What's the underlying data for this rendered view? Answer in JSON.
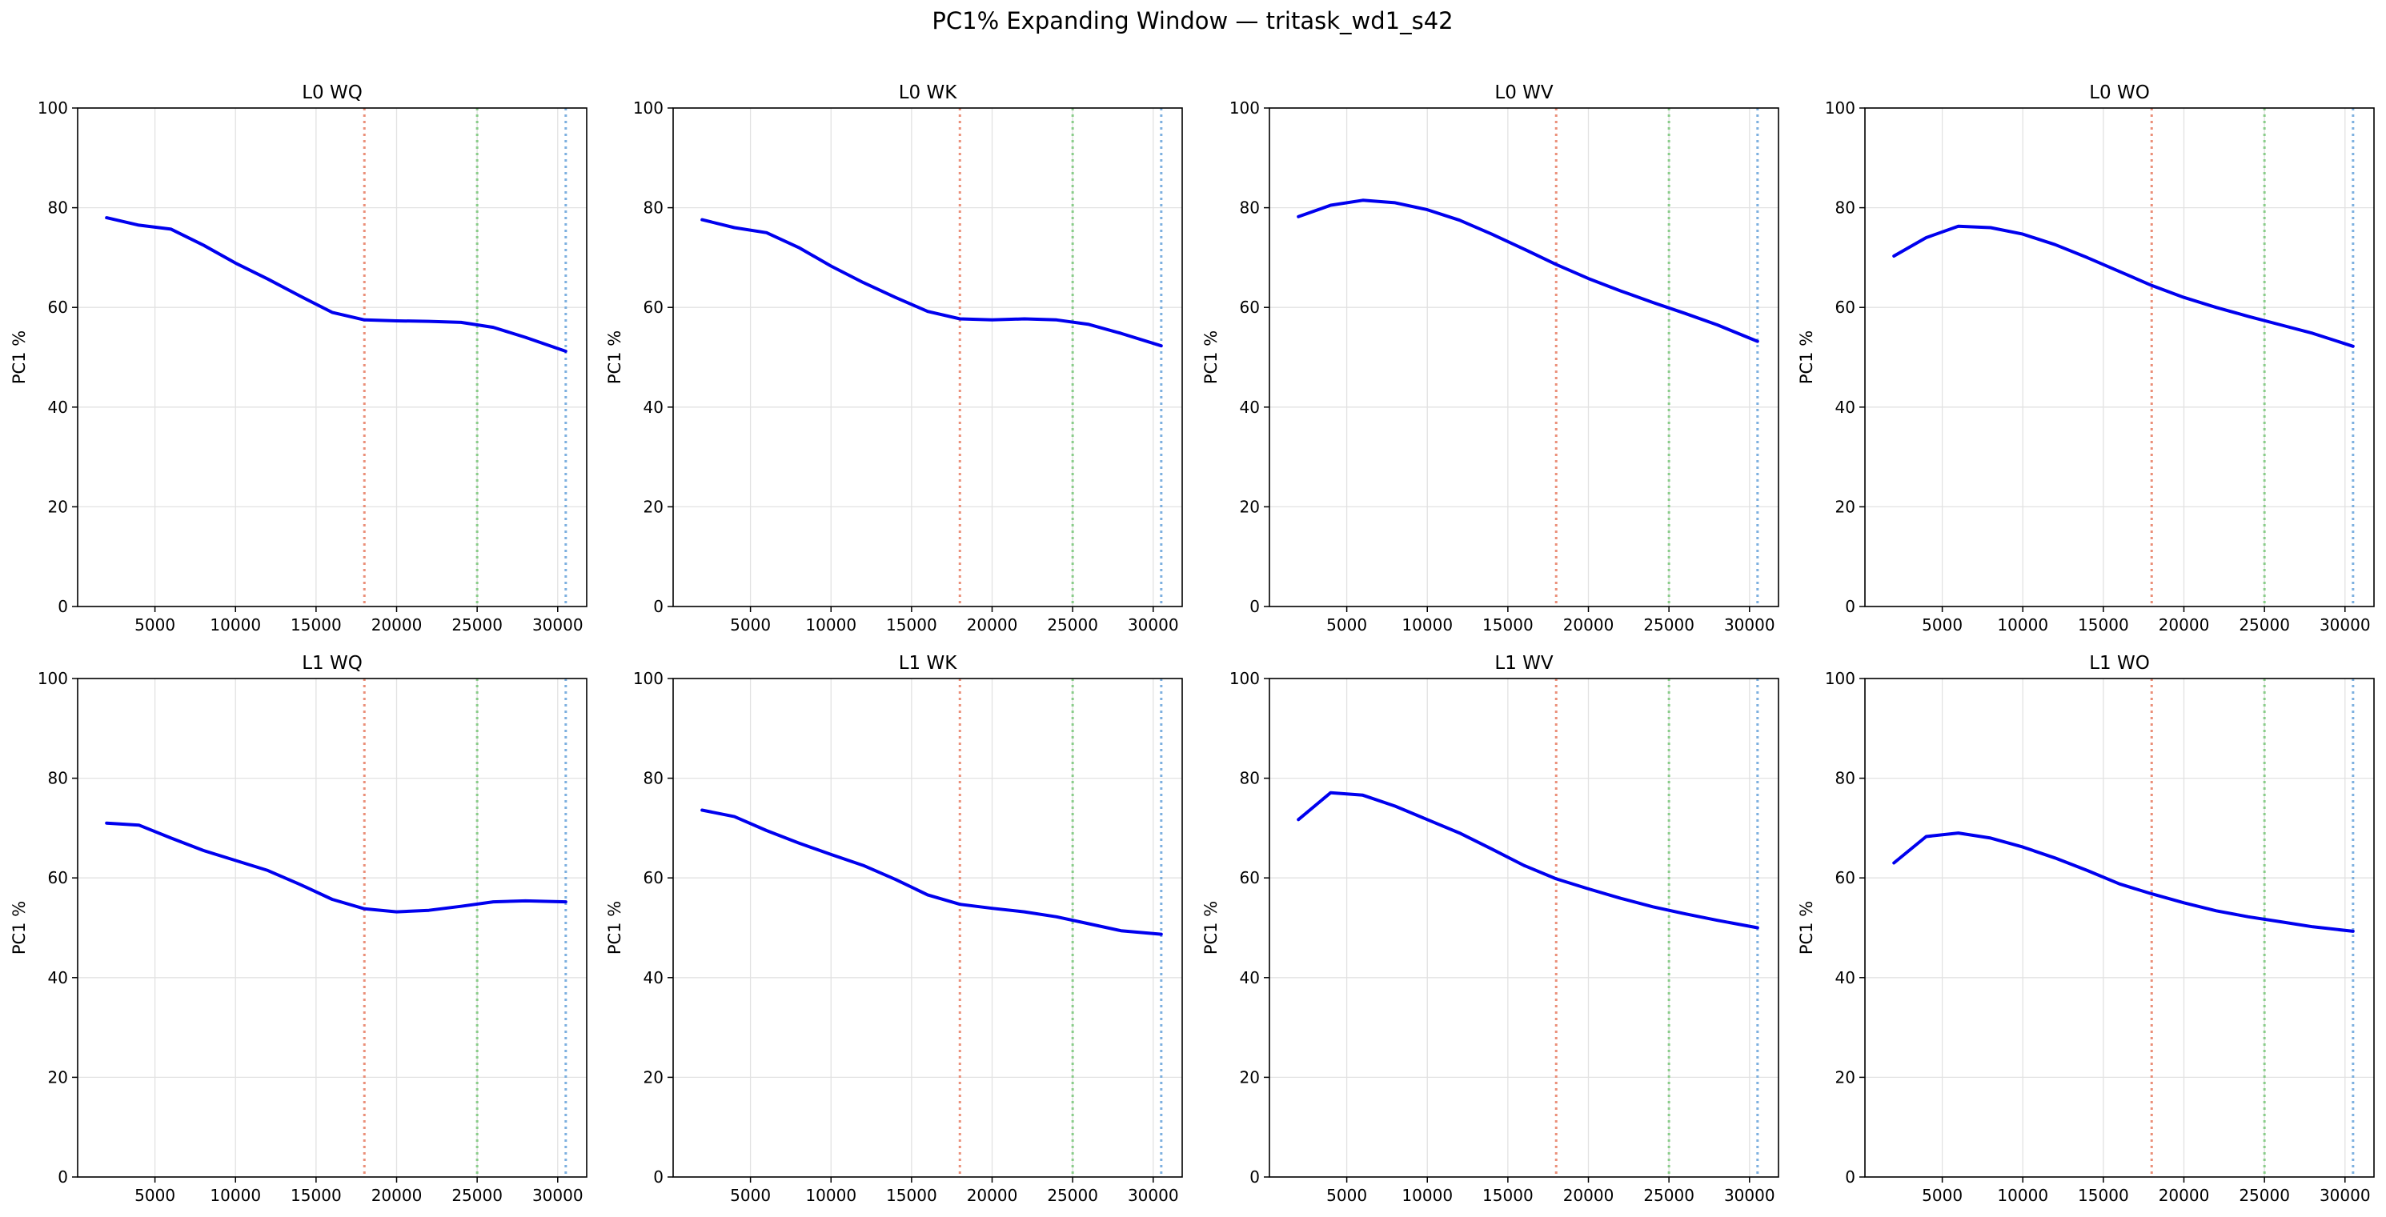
{
  "figure": {
    "title": "PC1% Expanding Window — tritask_wd1_s42"
  },
  "chart_data": {
    "type": "line",
    "grid": true,
    "layout": "2 rows x 4 columns",
    "colors": {
      "line": "#0000ee",
      "vline_1": "#e8836b",
      "vline_2": "#7fc97f",
      "vline_3": "#6fa8dc",
      "grid": "#e2e2e2"
    },
    "vlines": [
      {
        "x": 18000,
        "color": "#e8836b",
        "style": "dotted"
      },
      {
        "x": 25000,
        "color": "#7fc97f",
        "style": "dotted"
      },
      {
        "x": 30500,
        "color": "#6fa8dc",
        "style": "dotted"
      }
    ],
    "xlim": [
      200,
      31800
    ],
    "ylim": [
      0,
      100
    ],
    "x_ticks": [
      5000,
      10000,
      15000,
      20000,
      25000,
      30000
    ],
    "y_ticks": [
      0,
      20,
      40,
      60,
      80,
      100
    ],
    "x": [
      2000,
      4000,
      6000,
      8000,
      10000,
      12000,
      14000,
      16000,
      18000,
      20000,
      22000,
      24000,
      26000,
      28000,
      30500
    ],
    "panels": [
      {
        "title": "L0 WQ",
        "ylabel": "PC1 %",
        "values": [
          78.0,
          76.5,
          75.7,
          72.5,
          68.9,
          65.7,
          62.3,
          59.0,
          57.5,
          57.3,
          57.2,
          57.0,
          56.0,
          54.0,
          51.2
        ]
      },
      {
        "title": "L0 WK",
        "ylabel": "PC1 %",
        "values": [
          77.6,
          76.0,
          75.0,
          72.0,
          68.3,
          65.0,
          62.0,
          59.2,
          57.7,
          57.5,
          57.7,
          57.5,
          56.6,
          54.8,
          52.3
        ]
      },
      {
        "title": "L0 WV",
        "ylabel": "PC1 %",
        "values": [
          78.2,
          80.5,
          81.5,
          81.0,
          79.6,
          77.5,
          74.7,
          71.7,
          68.6,
          65.8,
          63.3,
          61.0,
          58.8,
          56.5,
          53.2
        ]
      },
      {
        "title": "L0 WO",
        "ylabel": "PC1 %",
        "values": [
          70.3,
          74.0,
          76.3,
          76.0,
          74.7,
          72.6,
          70.0,
          67.2,
          64.4,
          62.0,
          60.0,
          58.2,
          56.5,
          54.8,
          52.2
        ]
      },
      {
        "title": "L1 WQ",
        "ylabel": "PC1 %",
        "values": [
          71.0,
          70.6,
          68.0,
          65.5,
          63.5,
          61.5,
          58.7,
          55.7,
          53.8,
          53.2,
          53.5,
          54.3,
          55.2,
          55.4,
          55.2
        ]
      },
      {
        "title": "L1 WK",
        "ylabel": "PC1 %",
        "values": [
          73.6,
          72.3,
          69.5,
          67.0,
          64.7,
          62.5,
          59.7,
          56.6,
          54.7,
          53.9,
          53.2,
          52.2,
          50.8,
          49.4,
          48.7
        ]
      },
      {
        "title": "L1 WV",
        "ylabel": "PC1 %",
        "values": [
          71.7,
          77.1,
          76.6,
          74.4,
          71.7,
          69.0,
          65.8,
          62.5,
          59.8,
          57.8,
          55.9,
          54.2,
          52.8,
          51.5,
          50.0
        ]
      },
      {
        "title": "L1 WO",
        "ylabel": "PC1 %",
        "values": [
          63.0,
          68.3,
          69.0,
          68.0,
          66.2,
          64.0,
          61.5,
          58.8,
          56.8,
          55.0,
          53.4,
          52.2,
          51.2,
          50.2,
          49.3
        ]
      }
    ]
  }
}
